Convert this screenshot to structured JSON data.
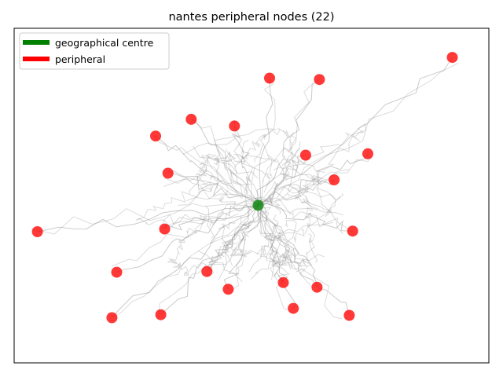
{
  "chart_data": {
    "type": "scatter",
    "title": "nantes peripheral nodes (22)",
    "xlabel": "",
    "ylabel": "",
    "ticks_visible": false,
    "grid": false,
    "legend_placement": "top-left",
    "legend": [
      {
        "label": "geographical centre",
        "color": "#008000"
      },
      {
        "label": "peripheral",
        "color": "#ff0000"
      }
    ],
    "xlim": [
      0,
      100
    ],
    "ylim": [
      0,
      100
    ],
    "network_color": "#8c8c8c",
    "series": [
      {
        "name": "geographical centre",
        "color": "#008000",
        "points": [
          [
            51.4,
            47.1
          ]
        ]
      },
      {
        "name": "peripheral",
        "color": "#ff0000",
        "points": [
          [
            92.3,
            91.3
          ],
          [
            53.8,
            85.1
          ],
          [
            64.3,
            84.7
          ],
          [
            37.3,
            72.8
          ],
          [
            46.4,
            70.8
          ],
          [
            29.8,
            67.8
          ],
          [
            74.5,
            62.5
          ],
          [
            61.4,
            62.1
          ],
          [
            32.4,
            56.7
          ],
          [
            67.4,
            54.7
          ],
          [
            4.9,
            39.2
          ],
          [
            31.7,
            40.0
          ],
          [
            71.3,
            39.4
          ],
          [
            21.6,
            27.1
          ],
          [
            40.6,
            27.3
          ],
          [
            56.7,
            24.0
          ],
          [
            63.8,
            22.6
          ],
          [
            45.1,
            22.0
          ],
          [
            58.8,
            16.3
          ],
          [
            70.6,
            14.2
          ],
          [
            30.9,
            14.4
          ],
          [
            20.6,
            13.5
          ]
        ]
      }
    ]
  }
}
